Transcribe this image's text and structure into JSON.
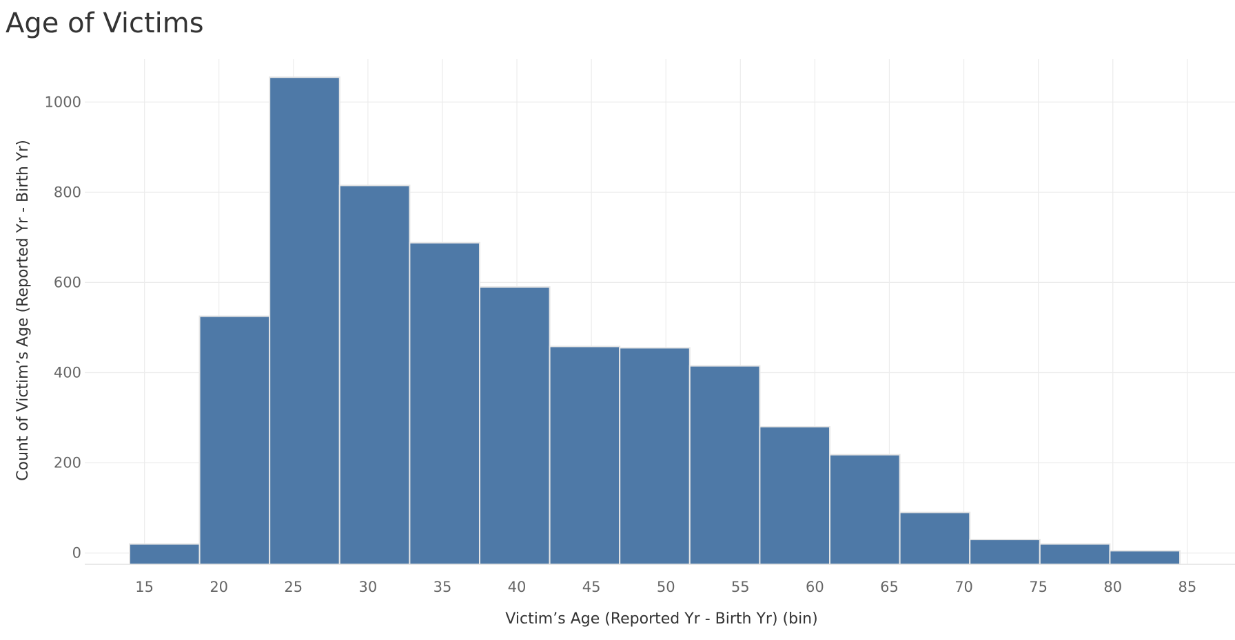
{
  "chart_data": {
    "type": "bar",
    "title": "Age of Victims",
    "xlabel": "Victim’s Age (Reported Yr - Birth Yr) (bin)",
    "ylabel": "Count of Victim’s Age (Reported Yr - Birth Yr)",
    "bin_edges": [
      14,
      18.7,
      23.4,
      28.1,
      32.8,
      37.5,
      42.2,
      46.9,
      51.6,
      56.3,
      61,
      65.7,
      70.4,
      75.1,
      79.8,
      84.5
    ],
    "values": [
      20,
      525,
      1055,
      815,
      688,
      590,
      458,
      455,
      415,
      280,
      218,
      90,
      30,
      20,
      5
    ],
    "x_ticks": [
      15,
      20,
      25,
      30,
      35,
      40,
      45,
      50,
      55,
      60,
      65,
      70,
      75,
      80,
      85
    ],
    "y_ticks": [
      0,
      200,
      400,
      600,
      800,
      1000
    ],
    "xlim": [
      10.3,
      88.2
    ],
    "ylim": [
      -25,
      1095
    ],
    "grid": true,
    "colors": {
      "bar_fill": "#4e79a7",
      "bar_stroke": "#e6e6e6",
      "grid": "#ececec"
    }
  }
}
